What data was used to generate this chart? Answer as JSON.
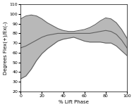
{
  "title": "",
  "xlabel": "% Lift Phase",
  "ylabel": "Degrees Flex(+)/Ex(-)",
  "xlim": [
    0,
    100
  ],
  "ylim": [
    20,
    110
  ],
  "xticks": [
    0,
    20,
    40,
    60,
    80,
    100
  ],
  "yticks": [
    20,
    30,
    40,
    50,
    60,
    70,
    80,
    90,
    100,
    110
  ],
  "mean_color": "#606060",
  "shade_color": "#b8b8b8",
  "background_color": "#ffffff",
  "linewidth": 0.8,
  "x": [
    0,
    5,
    10,
    15,
    20,
    25,
    30,
    35,
    40,
    45,
    50,
    55,
    60,
    65,
    70,
    75,
    80,
    85,
    90,
    95,
    100
  ],
  "mean": [
    65,
    67,
    70,
    73,
    76,
    78,
    79,
    80,
    80,
    80,
    80,
    80,
    80,
    80,
    81,
    82,
    83,
    82,
    79,
    73,
    65
  ],
  "std_upper": [
    95,
    98,
    99,
    98,
    95,
    91,
    88,
    85,
    83,
    82,
    82,
    83,
    84,
    86,
    89,
    93,
    96,
    95,
    91,
    84,
    75
  ],
  "std_lower": [
    33,
    36,
    43,
    52,
    59,
    64,
    68,
    72,
    74,
    75,
    76,
    74,
    72,
    71,
    71,
    71,
    70,
    70,
    67,
    62,
    57
  ]
}
